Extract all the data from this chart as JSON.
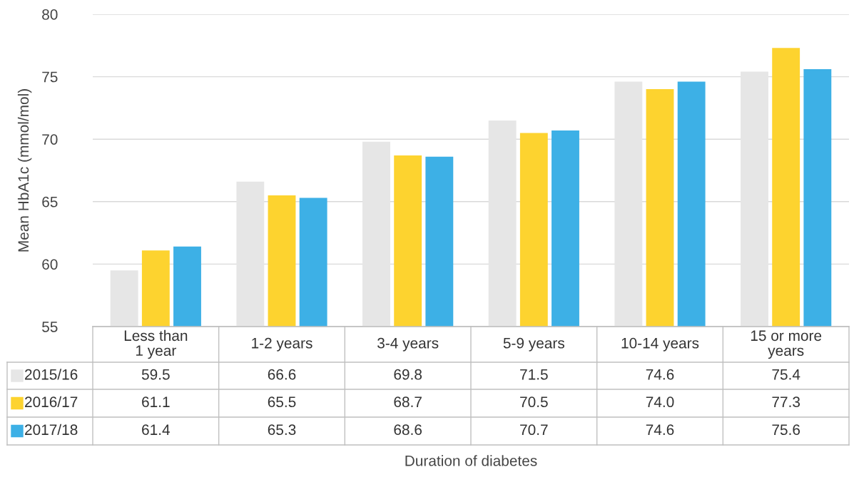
{
  "chart_data": {
    "type": "bar",
    "ylabel": "Mean HbA1c (mmol/mol)",
    "annotations": [
      "Duration of diabetes"
    ],
    "categories": [
      "Less than\n1 year",
      "1-2 years",
      "3-4 years",
      "5-9 years",
      "10-14 years",
      "15 or more\nyears"
    ],
    "series": [
      {
        "name": "2015/16",
        "color": "#e6e6e6",
        "values": [
          59.5,
          66.6,
          69.8,
          71.5,
          74.6,
          75.4
        ],
        "value_labels": [
          "59.5",
          "66.6",
          "69.8",
          "71.5",
          "74.6",
          "75.4"
        ]
      },
      {
        "name": "2016/17",
        "color": "#fdd32f",
        "values": [
          61.1,
          65.5,
          68.7,
          70.5,
          74.0,
          77.3
        ],
        "value_labels": [
          "61.1",
          "65.5",
          "68.7",
          "70.5",
          "74.0",
          "77.3"
        ]
      },
      {
        "name": "2017/18",
        "color": "#3db0e6",
        "values": [
          61.4,
          65.3,
          68.6,
          70.7,
          74.6,
          75.6
        ],
        "value_labels": [
          "61.4",
          "65.3",
          "68.6",
          "70.7",
          "74.6",
          "75.6"
        ]
      }
    ],
    "ylim": [
      55,
      80
    ],
    "yticks": [
      55,
      60,
      65,
      70,
      75,
      80
    ],
    "grid": "y",
    "legend": "bottom left"
  }
}
